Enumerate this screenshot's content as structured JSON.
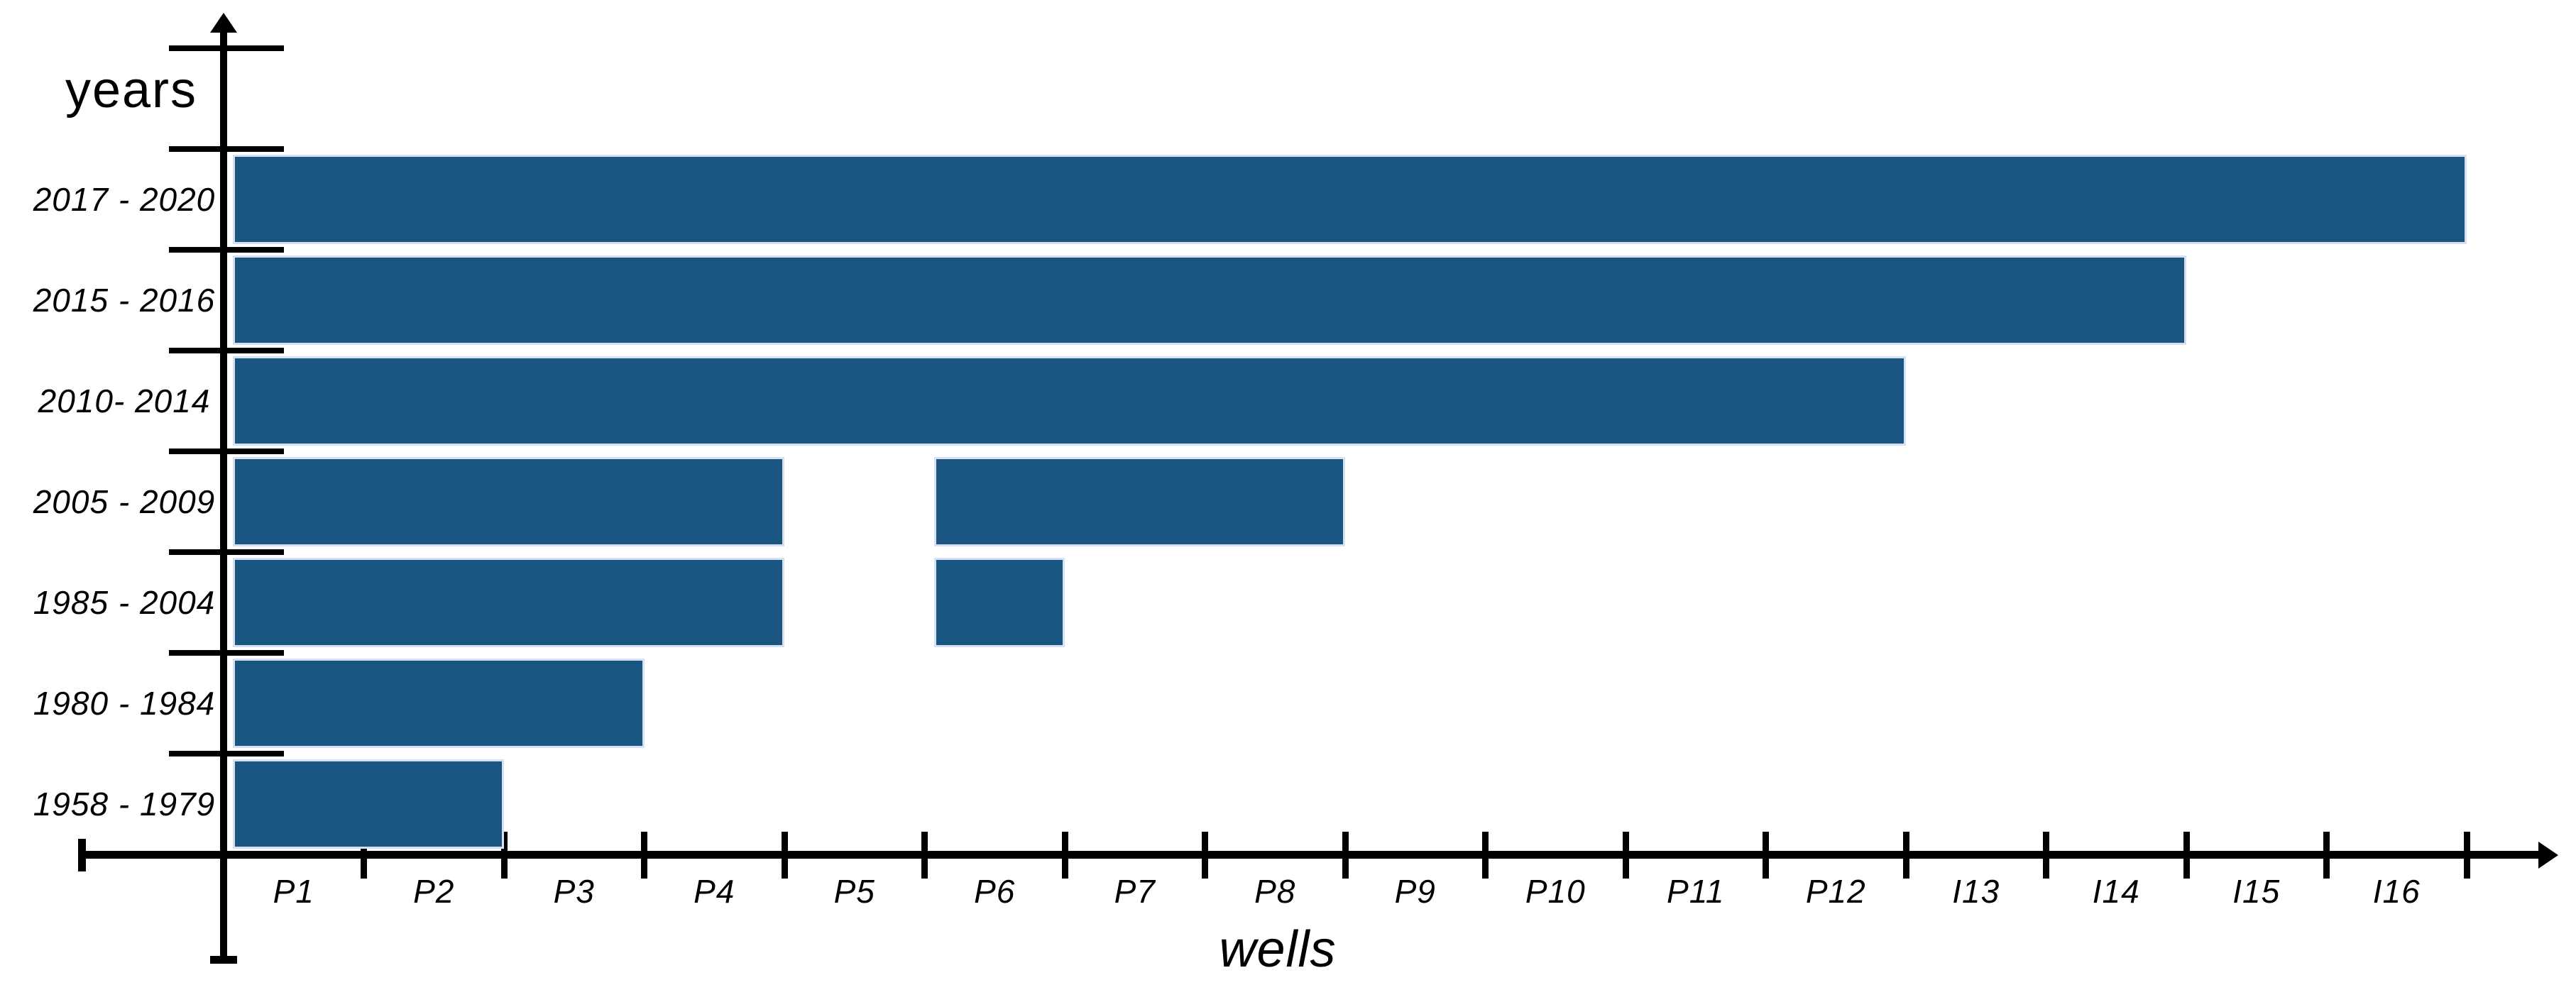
{
  "chart_data": {
    "type": "bar",
    "orientation": "horizontal",
    "title": "",
    "ylabel": "years",
    "xlabel": "wells",
    "grid": false,
    "x_axis_unit": "wells (one tick interval = one well)",
    "x_range_wells": [
      0,
      16
    ],
    "x_tick_labels": [
      "P1",
      "P2",
      "P3",
      "P4",
      "P5",
      "P6",
      "P7",
      "P8",
      "P9",
      "P10",
      "P11",
      "P12",
      "I13",
      "I14",
      "I15",
      "I16"
    ],
    "categories": [
      "2017 - 2020",
      "2015 - 2016",
      "2010- 2014",
      "2005 - 2009",
      "1985 - 2004",
      "1980 - 1984",
      "1958 - 1979"
    ],
    "series": [
      {
        "name": "2017 - 2020",
        "segments": [
          [
            0,
            16
          ]
        ],
        "total_wells": 16
      },
      {
        "name": "2015 - 2016",
        "segments": [
          [
            0,
            14
          ]
        ],
        "total_wells": 14
      },
      {
        "name": "2010- 2014",
        "segments": [
          [
            0,
            12
          ]
        ],
        "total_wells": 12
      },
      {
        "name": "2005 - 2009",
        "segments": [
          [
            0,
            4
          ],
          [
            5,
            8
          ]
        ],
        "total_wells": 7
      },
      {
        "name": "1985 - 2004",
        "segments": [
          [
            0,
            4
          ],
          [
            5,
            6
          ]
        ],
        "total_wells": 5
      },
      {
        "name": "1980 - 1984",
        "segments": [
          [
            0,
            3
          ]
        ],
        "total_wells": 3
      },
      {
        "name": "1958 - 1979",
        "segments": [
          [
            0,
            2
          ]
        ],
        "total_wells": 2
      }
    ],
    "colors": {
      "bar_fill": "#1A5480",
      "bar_border": "#D6E1F1",
      "axis": "#000000",
      "background": "#ffffff"
    },
    "legend": null
  }
}
